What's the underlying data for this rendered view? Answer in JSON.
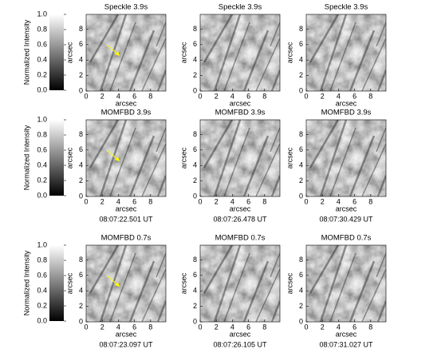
{
  "colorbars": [
    {
      "label": "Normalized Intensity",
      "lim": [
        0,
        1
      ],
      "ticks": [
        {
          "value": 0,
          "label": "0.0"
        },
        {
          "value": 0.2,
          "label": "0.2"
        },
        {
          "value": 0.4,
          "label": "0.4"
        },
        {
          "value": 0.6,
          "label": "0.6"
        },
        {
          "value": 0.8,
          "label": "0.8"
        },
        {
          "value": 1,
          "label": "1.0"
        }
      ]
    },
    {
      "label": "Normalized Intensity",
      "lim": [
        0,
        1
      ],
      "ticks": [
        {
          "value": 0,
          "label": "0.0"
        },
        {
          "value": 0.2,
          "label": "0.2"
        },
        {
          "value": 0.4,
          "label": "0.4"
        },
        {
          "value": 0.6,
          "label": "0.6"
        },
        {
          "value": 0.8,
          "label": "0.8"
        },
        {
          "value": 1,
          "label": "1.0"
        }
      ]
    },
    {
      "label": "Normalized Intensity",
      "lim": [
        0,
        1
      ],
      "ticks": [
        {
          "value": 0,
          "label": "0.0"
        },
        {
          "value": 0.2,
          "label": "0.2"
        },
        {
          "value": 0.4,
          "label": "0.4"
        },
        {
          "value": 0.6,
          "label": "0.6"
        },
        {
          "value": 0.8,
          "label": "0.8"
        },
        {
          "value": 1,
          "label": "1.0"
        }
      ]
    }
  ],
  "panels": [
    {
      "title": "Speckle  3.9s",
      "xlabel": "arcsec",
      "ylabel": "arcsec",
      "xlim": [
        0,
        9.9
      ],
      "ylim": [
        0,
        9.9
      ],
      "xticks": [
        0,
        2,
        4,
        6,
        8
      ],
      "yticks": [
        0,
        2,
        4,
        6,
        8
      ]
    },
    {
      "title": "Speckle  3.9s",
      "xlabel": "arcsec",
      "ylabel": "arcsec",
      "xlim": [
        0,
        9.9
      ],
      "ylim": [
        0,
        9.9
      ],
      "xticks": [
        0,
        2,
        4,
        6,
        8
      ],
      "yticks": [
        0,
        2,
        4,
        6,
        8
      ]
    },
    {
      "title": "Speckle  3.9s",
      "xlabel": "arcsec",
      "ylabel": "arcsec",
      "xlim": [
        0,
        9.9
      ],
      "ylim": [
        0,
        9.9
      ],
      "xticks": [
        0,
        2,
        4,
        6,
        8
      ],
      "yticks": [
        0,
        2,
        4,
        6,
        8
      ]
    },
    {
      "title": "MOMFBD 3.9s",
      "xlabel": "arcsec",
      "ylabel": "arcsec",
      "time": "08:07:22.501 UT",
      "xlim": [
        0,
        9.9
      ],
      "ylim": [
        0,
        9.9
      ],
      "xticks": [
        0,
        2,
        4,
        6,
        8
      ],
      "yticks": [
        0,
        2,
        4,
        6,
        8
      ]
    },
    {
      "title": "MOMFBD 3.9s",
      "xlabel": "arcsec",
      "ylabel": "arcsec",
      "time": "08:07:26.478 UT",
      "xlim": [
        0,
        9.9
      ],
      "ylim": [
        0,
        9.9
      ],
      "xticks": [
        0,
        2,
        4,
        6,
        8
      ],
      "yticks": [
        0,
        2,
        4,
        6,
        8
      ]
    },
    {
      "title": "MOMFBD 3.9s",
      "xlabel": "arcsec",
      "ylabel": "arcsec",
      "time": "08:07:30.429 UT",
      "xlim": [
        0,
        9.9
      ],
      "ylim": [
        0,
        9.9
      ],
      "xticks": [
        0,
        2,
        4,
        6,
        8
      ],
      "yticks": [
        0,
        2,
        4,
        6,
        8
      ]
    },
    {
      "title": "MOMFBD 0.7s",
      "xlabel": "arcsec",
      "ylabel": "arcsec",
      "time": "08:07:23.097 UT",
      "xlim": [
        0,
        9.9
      ],
      "ylim": [
        0,
        9.9
      ],
      "xticks": [
        0,
        2,
        4,
        6,
        8
      ],
      "yticks": [
        0,
        2,
        4,
        6,
        8
      ]
    },
    {
      "title": "MOMFBD 0.7s",
      "xlabel": "arcsec",
      "ylabel": "arcsec",
      "time": "08:07:26.105 UT",
      "xlim": [
        0,
        9.9
      ],
      "ylim": [
        0,
        9.9
      ],
      "xticks": [
        0,
        2,
        4,
        6,
        8
      ],
      "yticks": [
        0,
        2,
        4,
        6,
        8
      ]
    },
    {
      "title": "MOMFBD 0.7s",
      "xlabel": "arcsec",
      "ylabel": "arcsec",
      "time": "08:07:31.027 UT",
      "xlim": [
        0,
        9.9
      ],
      "ylim": [
        0,
        9.9
      ],
      "xticks": [
        0,
        2,
        4,
        6,
        8
      ],
      "yticks": [
        0,
        2,
        4,
        6,
        8
      ]
    }
  ]
}
